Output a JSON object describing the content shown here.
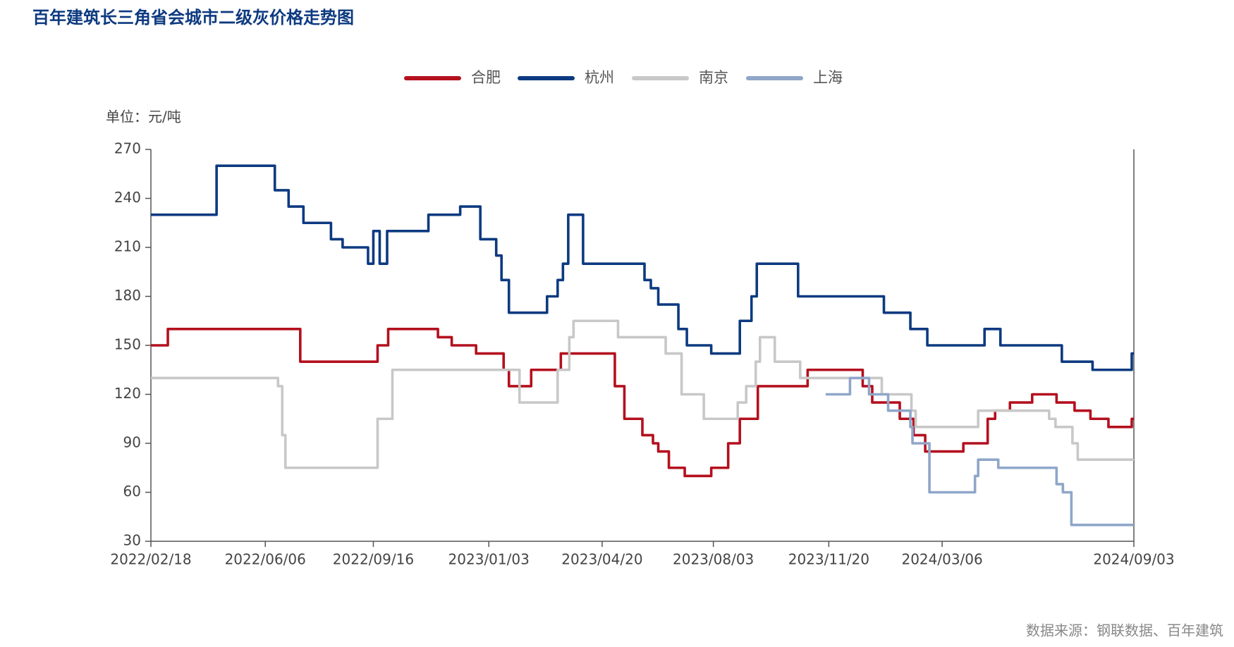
{
  "chart_data": {
    "type": "step-line",
    "title": "百年建筑长三角省会城市二级灰价格走势图",
    "y_label": "单位：元/吨",
    "source": "数据来源：钢联数据、百年建筑",
    "ylim": [
      30,
      270
    ],
    "yticks": [
      30,
      60,
      90,
      120,
      150,
      180,
      210,
      240,
      270
    ],
    "xlim": [
      "2022/02/18",
      "2024/09/03"
    ],
    "xticks": [
      "2022/02/18",
      "2022/06/06",
      "2022/09/16",
      "2023/01/03",
      "2023/04/20",
      "2023/08/03",
      "2023/11/20",
      "2024/03/06",
      "2024/09/03"
    ],
    "legend": "top",
    "series": [
      {
        "name": "合肥",
        "color": "#b4101e",
        "x": [
          "2022/02/18",
          "2022/03/06",
          "2022/07/09",
          "2022/09/20",
          "2022/09/30",
          "2022/11/16",
          "2022/11/29",
          "2022/12/22",
          "2023/01/17",
          "2023/01/22",
          "2023/02/12",
          "2023/03/12",
          "2023/05/02",
          "2023/05/11",
          "2023/05/28",
          "2023/06/07",
          "2023/06/12",
          "2023/06/22",
          "2023/07/07",
          "2023/08/01",
          "2023/08/17",
          "2023/08/28",
          "2023/09/14",
          "2023/10/31",
          "2023/12/22",
          "2023/12/31",
          "2024/01/26",
          "2024/02/08",
          "2024/02/19",
          "2024/03/26",
          "2024/04/18",
          "2024/04/25",
          "2024/05/09",
          "2024/05/30",
          "2024/06/22",
          "2024/07/09",
          "2024/07/24",
          "2024/08/10",
          "2024/09/01",
          "2024/09/03"
        ],
        "values": [
          150,
          160,
          140,
          150,
          160,
          155,
          150,
          145,
          135,
          125,
          135,
          145,
          125,
          105,
          95,
          90,
          85,
          75,
          70,
          75,
          90,
          105,
          125,
          135,
          125,
          115,
          105,
          95,
          85,
          90,
          105,
          110,
          115,
          120,
          115,
          110,
          105,
          100,
          105,
          105
        ]
      },
      {
        "name": "杭州",
        "color": "#0d3a80",
        "x": [
          "2022/02/18",
          "2022/04/21",
          "2022/06/15",
          "2022/06/28",
          "2022/07/12",
          "2022/08/07",
          "2022/08/18",
          "2022/09/11",
          "2022/09/16",
          "2022/09/22",
          "2022/09/29",
          "2022/11/07",
          "2022/12/07",
          "2022/12/26",
          "2023/01/10",
          "2023/01/15",
          "2023/01/22",
          "2023/02/27",
          "2023/03/09",
          "2023/03/14",
          "2023/03/19",
          "2023/04/02",
          "2023/05/30",
          "2023/06/05",
          "2023/06/12",
          "2023/07/01",
          "2023/07/09",
          "2023/08/01",
          "2023/08/28",
          "2023/09/08",
          "2023/09/13",
          "2023/10/22",
          "2024/01/11",
          "2024/02/05",
          "2024/02/21",
          "2024/04/15",
          "2024/04/30",
          "2024/06/27",
          "2024/07/26",
          "2024/09/01",
          "2024/09/03"
        ],
        "values": [
          230,
          260,
          245,
          235,
          225,
          215,
          210,
          200,
          220,
          200,
          220,
          230,
          235,
          215,
          205,
          190,
          170,
          180,
          190,
          200,
          230,
          200,
          190,
          185,
          175,
          160,
          150,
          145,
          165,
          180,
          200,
          180,
          170,
          160,
          150,
          160,
          150,
          140,
          135,
          145,
          145
        ]
      },
      {
        "name": "南京",
        "color": "#c8c8c8",
        "x": [
          "2022/02/18",
          "2022/06/18",
          "2022/06/22",
          "2022/06/25",
          "2022/09/20",
          "2022/10/04",
          "2023/02/01",
          "2023/03/09",
          "2023/03/20",
          "2023/03/24",
          "2023/05/05",
          "2023/06/19",
          "2023/07/04",
          "2023/07/25",
          "2023/08/26",
          "2023/09/03",
          "2023/09/12",
          "2023/09/16",
          "2023/09/30",
          "2023/10/24",
          "2024/01/09",
          "2024/02/06",
          "2024/02/10",
          "2024/04/09",
          "2024/06/15",
          "2024/06/21",
          "2024/07/07",
          "2024/07/12",
          "2024/09/03"
        ],
        "values": [
          130,
          125,
          95,
          75,
          105,
          135,
          115,
          135,
          155,
          165,
          155,
          145,
          120,
          105,
          115,
          125,
          140,
          155,
          140,
          130,
          120,
          110,
          100,
          110,
          105,
          100,
          90,
          80,
          80
        ]
      },
      {
        "name": "上海",
        "color": "#8fa6c9",
        "x": [
          "2023/11/17",
          "2023/12/10",
          "2023/12/28",
          "2024/01/15",
          "2024/02/05",
          "2024/02/07",
          "2024/02/23",
          "2024/04/06",
          "2024/04/09",
          "2024/04/28",
          "2024/06/22",
          "2024/06/28",
          "2024/07/06",
          "2024/09/03"
        ],
        "values": [
          120,
          130,
          120,
          110,
          100,
          90,
          60,
          70,
          80,
          75,
          65,
          60,
          40,
          40
        ]
      }
    ]
  }
}
